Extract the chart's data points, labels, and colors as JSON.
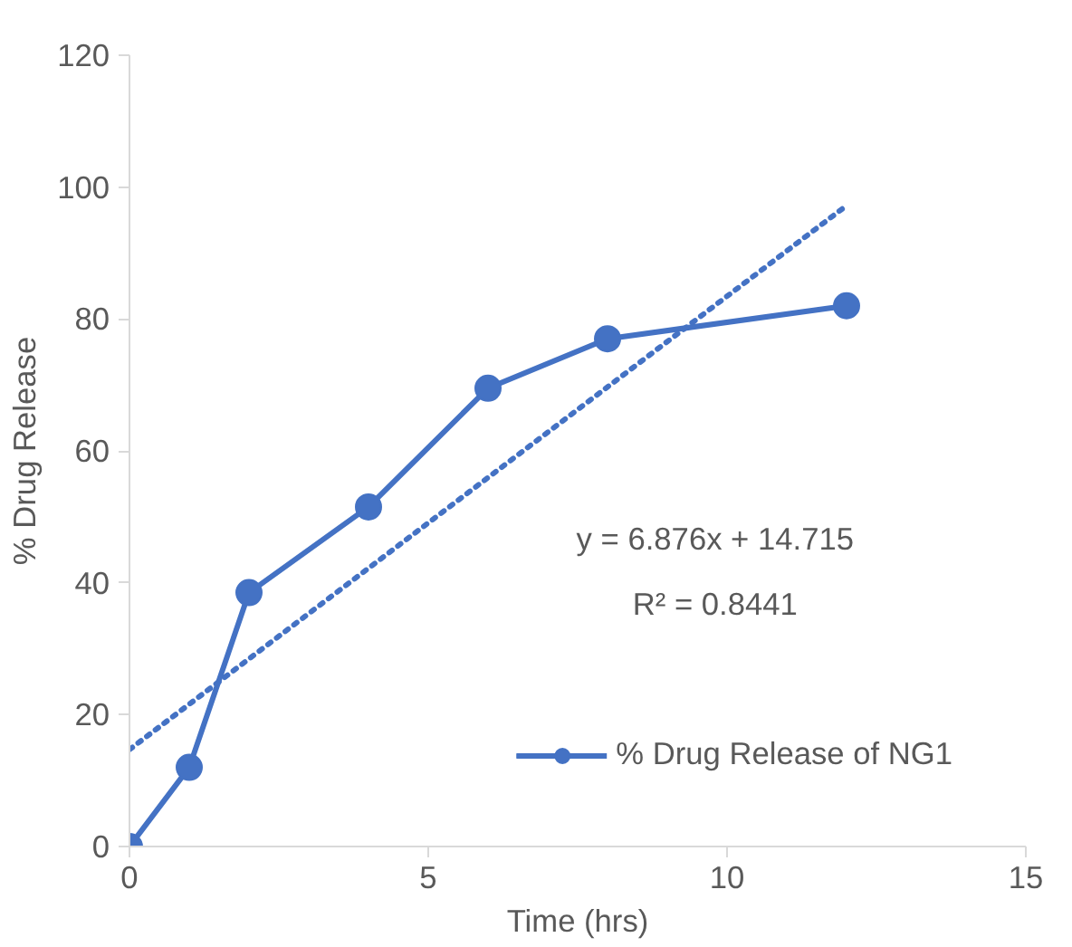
{
  "chart_data": {
    "type": "line",
    "xlabel": "Time (hrs)",
    "ylabel": "% Drug Release",
    "x": [
      0,
      1,
      2,
      4,
      6,
      8,
      12
    ],
    "series": [
      {
        "name": "% Drug Release of NG1",
        "color": "#4472c4",
        "values": [
          0,
          12,
          38.5,
          51.5,
          69.5,
          77,
          82
        ],
        "marker": "circle",
        "line_style": "solid"
      },
      {
        "x": [
          0,
          12
        ],
        "color": "#4472c4",
        "values": [
          14.7,
          97.2
        ],
        "marker": "none",
        "line_style": "dotted"
      }
    ],
    "annotations": [
      "y = 6.876x + 14.715",
      "R² = 0.8441"
    ],
    "xlim": [
      0,
      15
    ],
    "xticks": [
      0,
      5,
      10,
      15
    ],
    "ylim": [
      0,
      120
    ],
    "yticks": [
      0,
      20,
      40,
      60,
      80,
      100,
      120
    ],
    "grid": false,
    "legend": "bottom right"
  }
}
